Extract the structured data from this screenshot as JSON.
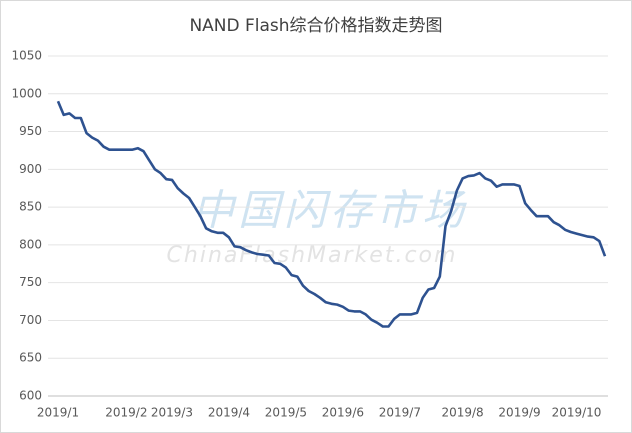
{
  "chart_data": {
    "type": "line",
    "title": "NAND Flash综合价格指数走势图",
    "watermark": "中国闪存市场",
    "watermark_sub": "ChinaFlashMarket.com",
    "categories": [
      "2019/1",
      null,
      null,
      null,
      null,
      null,
      null,
      null,
      null,
      null,
      null,
      null,
      "2019/2",
      null,
      null,
      null,
      null,
      null,
      null,
      null,
      "2019/3",
      null,
      null,
      null,
      null,
      null,
      null,
      null,
      null,
      null,
      "2019/4",
      null,
      null,
      null,
      null,
      null,
      null,
      null,
      null,
      null,
      "2019/5",
      null,
      null,
      null,
      null,
      null,
      null,
      null,
      null,
      null,
      "2019/6",
      null,
      null,
      null,
      null,
      null,
      null,
      null,
      null,
      null,
      "2019/7",
      null,
      null,
      null,
      null,
      null,
      null,
      null,
      null,
      null,
      null,
      "2019/8",
      null,
      null,
      null,
      null,
      null,
      null,
      null,
      null,
      null,
      "2019/9",
      null,
      null,
      null,
      null,
      null,
      null,
      null,
      null,
      null,
      "2019/10",
      null,
      null,
      null,
      null,
      null
    ],
    "series": [
      {
        "name": "NAND Flash综合价格指数",
        "color": "#2e5290",
        "values": [
          990,
          972,
          974,
          968,
          968,
          948,
          942,
          938,
          930,
          926,
          926,
          926,
          926,
          926,
          928,
          924,
          912,
          900,
          895,
          887,
          886,
          875,
          868,
          862,
          850,
          838,
          822,
          818,
          816,
          816,
          810,
          798,
          797,
          793,
          790,
          788,
          787,
          786,
          776,
          775,
          770,
          760,
          758,
          746,
          739,
          735,
          730,
          724,
          722,
          721,
          718,
          713,
          712,
          712,
          708,
          701,
          697,
          692,
          692,
          702,
          708,
          708,
          708,
          710,
          730,
          741,
          743,
          758,
          825,
          845,
          872,
          888,
          891,
          892,
          895,
          888,
          885,
          877,
          880,
          880,
          880,
          878,
          855,
          846,
          838,
          838,
          838,
          830,
          826,
          820,
          817,
          815,
          813,
          811,
          810,
          805,
          785
        ]
      }
    ],
    "ylim": [
      600,
      1050
    ],
    "yticks": [
      600,
      650,
      700,
      750,
      800,
      850,
      900,
      950,
      1000,
      1050
    ],
    "grid": true
  }
}
